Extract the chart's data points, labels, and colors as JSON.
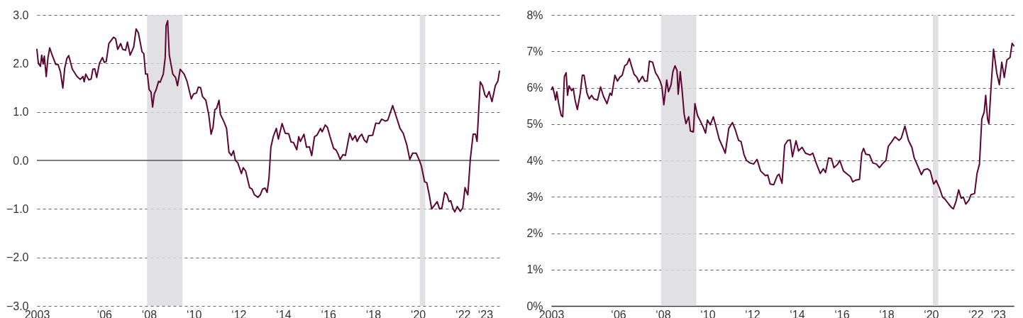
{
  "chart_data": [
    {
      "type": "line",
      "xlim": [
        "2003-01-01",
        "2023-08-22"
      ],
      "xticks": [
        {
          "value": "2003-01-01",
          "label": "2003"
        },
        {
          "value": "2006-01-01",
          "label": "‘06"
        },
        {
          "value": "2008-01-01",
          "label": "‘08"
        },
        {
          "value": "2010-01-01",
          "label": "‘10"
        },
        {
          "value": "2012-01-01",
          "label": "‘12"
        },
        {
          "value": "2014-01-01",
          "label": "‘14"
        },
        {
          "value": "2016-01-01",
          "label": "‘16"
        },
        {
          "value": "2018-01-01",
          "label": "‘18"
        },
        {
          "value": "2020-01-01",
          "label": "‘20"
        },
        {
          "value": "2022-01-01",
          "label": "‘22"
        },
        {
          "value": "2023-01-01",
          "label": "‘23"
        }
      ],
      "ylim": [
        -3,
        3
      ],
      "yticks": [
        {
          "value": -3,
          "label": "−3.0"
        },
        {
          "value": -2,
          "label": "−2.0"
        },
        {
          "value": -1,
          "label": "−1.0"
        },
        {
          "value": 0,
          "label": "0.0"
        },
        {
          "value": 1,
          "label": "1.0"
        },
        {
          "value": 2,
          "label": "2.0"
        },
        {
          "value": 3,
          "label": "3.0"
        }
      ],
      "grid": "y",
      "bands": [
        {
          "axis": "x",
          "from": "2007-12-01",
          "to": "2009-06-30",
          "color": "#dcdcdf"
        },
        {
          "axis": "x",
          "from": "2020-02-01",
          "to": "2020-04-30",
          "color": "#dcdcdf"
        }
      ],
      "ref_lines": [
        {
          "axis": "y",
          "value": 0,
          "color": "#555555"
        }
      ],
      "series": [
        {
          "color": "#5c0632",
          "x": [
            "2003-01-01",
            "2003-01-25",
            "2003-02-28",
            "2003-03-20",
            "2003-04-13",
            "2003-05-02",
            "2003-06-02",
            "2003-07-01",
            "2003-07-29",
            "2003-09-07",
            "2003-11-04",
            "2003-12-12",
            "2004-01-19",
            "2004-02-28",
            "2004-03-29",
            "2004-05-03",
            "2004-06-03",
            "2004-08-01",
            "2004-10-16",
            "2004-12-07",
            "2005-01-21",
            "2005-02-10",
            "2005-03-07",
            "2005-04-26",
            "2005-06-04",
            "2005-07-01",
            "2005-08-01",
            "2005-09-02",
            "2005-10-16",
            "2005-12-04",
            "2006-01-03",
            "2006-02-04",
            "2006-03-19",
            "2006-06-04",
            "2006-07-07",
            "2006-08-10",
            "2006-09-28",
            "2006-10-30",
            "2006-12-16",
            "2007-01-15",
            "2007-03-01",
            "2007-04-28",
            "2007-06-06",
            "2007-07-13",
            "2007-09-10",
            "2007-10-10",
            "2007-11-07",
            "2007-12-07",
            "2008-01-04",
            "2008-02-04",
            "2008-03-01",
            "2008-03-28",
            "2008-04-28",
            "2008-06-06",
            "2008-07-01",
            "2008-08-22",
            "2008-09-22",
            "2008-10-07",
            "2008-11-01",
            "2008-11-28",
            "2009-01-24",
            "2009-03-10",
            "2009-04-10",
            "2009-05-25",
            "2009-07-28",
            "2009-09-13",
            "2009-11-21",
            "2009-12-28",
            "2010-02-14",
            "2010-03-16",
            "2010-04-22",
            "2010-05-22",
            "2010-07-16",
            "2010-09-01",
            "2010-10-10",
            "2010-11-10",
            "2010-12-10",
            "2011-01-07",
            "2011-02-16",
            "2011-03-11",
            "2011-05-13",
            "2011-06-19",
            "2011-07-28",
            "2011-09-07",
            "2011-10-10",
            "2011-11-10",
            "2011-12-19",
            "2012-02-16",
            "2012-03-16",
            "2012-04-25",
            "2012-06-28",
            "2012-08-07",
            "2012-09-16",
            "2012-11-10",
            "2012-12-19",
            "2013-01-26",
            "2013-03-07",
            "2013-04-10",
            "2013-05-10",
            "2013-06-10",
            "2013-07-19",
            "2013-09-07",
            "2013-10-10",
            "2013-12-10",
            "2014-01-30",
            "2014-03-28",
            "2014-05-04",
            "2014-06-13",
            "2014-08-07",
            "2014-09-07",
            "2014-10-04",
            "2014-12-01",
            "2015-01-12",
            "2015-02-28",
            "2015-04-07",
            "2015-05-22",
            "2015-07-01",
            "2015-08-28",
            "2015-09-25",
            "2015-11-13",
            "2015-12-19",
            "2016-01-30",
            "2016-03-28",
            "2016-05-10",
            "2016-06-13",
            "2016-07-13",
            "2016-08-28",
            "2016-10-07",
            "2016-12-16",
            "2017-01-30",
            "2017-03-16",
            "2017-04-16",
            "2017-05-25",
            "2017-07-01",
            "2017-08-10",
            "2017-09-19",
            "2017-10-19",
            "2017-12-25",
            "2018-02-13",
            "2018-04-10",
            "2018-05-19",
            "2018-07-22",
            "2018-08-28",
            "2018-11-16",
            "2019-02-01",
            "2019-03-16",
            "2019-05-07",
            "2019-07-04",
            "2019-08-22",
            "2019-10-07",
            "2019-12-04",
            "2020-02-01",
            "2020-02-28",
            "2020-04-19",
            "2020-05-25",
            "2020-07-04",
            "2020-08-13",
            "2020-11-10",
            "2020-12-19",
            "2021-01-26",
            "2021-03-13",
            "2021-04-19",
            "2021-05-22",
            "2021-06-19",
            "2021-07-28",
            "2021-08-25",
            "2021-10-04",
            "2021-11-22",
            "2022-01-01",
            "2022-02-07",
            "2022-03-25",
            "2022-05-04",
            "2022-06-19",
            "2022-07-28",
            "2022-08-22",
            "2022-10-13",
            "2022-11-19",
            "2022-12-28",
            "2023-01-26",
            "2023-03-07",
            "2023-04-22",
            "2023-06-16",
            "2023-07-28",
            "2023-08-22"
          ],
          "values": [
            2.29,
            2.0,
            1.94,
            2.17,
            1.99,
            2.15,
            1.73,
            2.12,
            2.32,
            2.17,
            1.98,
            1.98,
            1.83,
            1.49,
            1.9,
            2.1,
            2.16,
            1.88,
            1.73,
            1.67,
            1.73,
            1.62,
            1.78,
            1.66,
            1.68,
            1.88,
            1.89,
            1.71,
            2.0,
            2.12,
            2.02,
            2.04,
            2.41,
            2.54,
            2.51,
            2.29,
            2.41,
            2.29,
            2.27,
            2.44,
            2.17,
            2.34,
            2.71,
            2.63,
            2.24,
            2.2,
            1.78,
            1.78,
            1.46,
            1.41,
            1.1,
            1.37,
            1.46,
            1.63,
            1.61,
            1.78,
            2.12,
            2.78,
            2.88,
            2.17,
            1.78,
            1.71,
            1.54,
            1.88,
            1.78,
            1.63,
            1.27,
            1.37,
            1.39,
            1.51,
            1.5,
            1.32,
            1.24,
            0.95,
            0.54,
            0.68,
            1.05,
            1.07,
            1.24,
            0.95,
            0.78,
            0.66,
            0.17,
            0.1,
            0.2,
            0.0,
            -0.05,
            -0.27,
            -0.15,
            -0.22,
            -0.56,
            -0.59,
            -0.71,
            -0.76,
            -0.71,
            -0.59,
            -0.57,
            -0.66,
            -0.37,
            0.27,
            0.49,
            0.66,
            0.44,
            0.76,
            0.56,
            0.55,
            0.38,
            0.37,
            0.22,
            0.49,
            0.39,
            0.54,
            0.27,
            0.28,
            0.1,
            0.49,
            0.52,
            0.66,
            0.59,
            0.73,
            0.68,
            0.49,
            0.25,
            0.21,
            0.12,
            0.02,
            0.12,
            0.1,
            0.56,
            0.42,
            0.51,
            0.39,
            0.49,
            0.54,
            0.42,
            0.37,
            0.51,
            0.52,
            0.77,
            0.76,
            0.85,
            0.81,
            0.83,
            1.13,
            0.83,
            0.66,
            0.56,
            0.32,
            0.02,
            0.15,
            0.15,
            -0.02,
            -0.12,
            -0.44,
            -0.46,
            -0.71,
            -1.0,
            -0.85,
            -1.0,
            -0.98,
            -0.66,
            -0.71,
            -0.85,
            -0.83,
            -1.0,
            -1.06,
            -0.95,
            -1.05,
            -0.98,
            -0.56,
            -0.71,
            0.02,
            0.54,
            0.54,
            0.39,
            1.62,
            1.54,
            1.35,
            1.3,
            1.42,
            1.21,
            1.54,
            1.64,
            1.84
          ]
        }
      ]
    },
    {
      "type": "line",
      "xlim": [
        "2003-01-01",
        "2023-09-15"
      ],
      "xticks": [
        {
          "value": "2003-01-01",
          "label": "2003"
        },
        {
          "value": "2006-01-01",
          "label": "‘06"
        },
        {
          "value": "2008-01-01",
          "label": "‘08"
        },
        {
          "value": "2010-01-01",
          "label": "‘10"
        },
        {
          "value": "2012-01-01",
          "label": "‘12"
        },
        {
          "value": "2014-01-01",
          "label": "‘14"
        },
        {
          "value": "2016-01-01",
          "label": "‘16"
        },
        {
          "value": "2018-01-01",
          "label": "‘18"
        },
        {
          "value": "2020-01-01",
          "label": "‘20"
        },
        {
          "value": "2022-01-01",
          "label": "‘22"
        },
        {
          "value": "2023-01-01",
          "label": "‘23"
        }
      ],
      "ylim": [
        0,
        8
      ],
      "yticks": [
        {
          "value": 0,
          "label": "0%"
        },
        {
          "value": 1,
          "label": "1%"
        },
        {
          "value": 2,
          "label": "2%"
        },
        {
          "value": 3,
          "label": "3%"
        },
        {
          "value": 4,
          "label": "4%"
        },
        {
          "value": 5,
          "label": "5%"
        },
        {
          "value": 6,
          "label": "6%"
        },
        {
          "value": 7,
          "label": "7%"
        },
        {
          "value": 8,
          "label": "8%"
        }
      ],
      "grid": "y",
      "bands": [
        {
          "axis": "x",
          "from": "2007-12-01",
          "to": "2009-06-30",
          "color": "#dcdcdf"
        },
        {
          "axis": "x",
          "from": "2020-02-01",
          "to": "2020-04-30",
          "color": "#dcdcdf"
        }
      ],
      "series": [
        {
          "color": "#5c0632",
          "x": [
            "2003-01-04",
            "2003-01-24",
            "2003-02-13",
            "2003-03-14",
            "2003-04-02",
            "2003-04-30",
            "2003-05-19",
            "2003-06-13",
            "2003-07-08",
            "2003-08-04",
            "2003-09-02",
            "2003-09-25",
            "2003-10-19",
            "2003-11-29",
            "2003-12-27",
            "2004-01-26",
            "2004-03-03",
            "2004-04-20",
            "2004-05-23",
            "2004-06-21",
            "2004-08-07",
            "2004-09-13",
            "2004-10-22",
            "2004-11-29",
            "2005-01-26",
            "2005-03-18",
            "2005-05-04",
            "2005-07-01",
            "2005-08-19",
            "2005-09-16",
            "2005-11-07",
            "2005-12-19",
            "2006-01-22",
            "2006-03-07",
            "2006-04-16",
            "2006-05-25",
            "2006-07-01",
            "2006-08-10",
            "2006-09-16",
            "2006-11-04",
            "2006-12-04",
            "2007-02-01",
            "2007-03-10",
            "2007-04-19",
            "2007-05-25",
            "2007-07-16",
            "2007-09-02",
            "2007-10-10",
            "2007-11-16",
            "2007-12-16",
            "2008-01-16",
            "2008-03-03",
            "2008-04-01",
            "2008-05-13",
            "2008-06-13",
            "2008-07-16",
            "2008-08-19",
            "2008-09-07",
            "2008-10-10",
            "2008-11-07",
            "2008-12-13",
            "2009-01-12",
            "2009-02-25",
            "2009-03-25",
            "2009-05-13",
            "2009-06-07",
            "2009-07-19",
            "2009-09-07",
            "2009-10-22",
            "2009-11-28",
            "2009-12-28",
            "2010-02-13",
            "2010-04-04",
            "2010-05-16",
            "2010-07-08",
            "2010-09-07",
            "2010-10-16",
            "2010-12-13",
            "2011-02-10",
            "2011-03-28",
            "2011-05-22",
            "2011-07-01",
            "2011-08-19",
            "2011-09-28",
            "2011-11-25",
            "2012-01-22",
            "2012-03-18",
            "2012-05-16",
            "2012-08-04",
            "2012-09-10",
            "2012-10-19",
            "2012-12-16",
            "2013-02-13",
            "2013-03-14",
            "2013-05-01",
            "2013-06-13",
            "2013-08-04",
            "2013-09-13",
            "2013-10-19",
            "2013-12-16",
            "2014-01-26",
            "2014-03-25",
            "2014-05-19",
            "2014-08-04",
            "2014-09-16",
            "2014-11-10",
            "2015-01-16",
            "2015-03-07",
            "2015-04-13",
            "2015-06-01",
            "2015-07-19",
            "2015-08-28",
            "2015-10-25",
            "2015-12-01",
            "2016-01-30",
            "2016-03-28",
            "2016-05-25",
            "2016-07-01",
            "2016-08-19",
            "2016-10-19",
            "2016-11-25",
            "2016-12-25",
            "2017-01-30",
            "2017-04-01",
            "2017-05-25",
            "2017-07-22",
            "2017-09-10",
            "2017-10-31",
            "2017-12-25",
            "2018-02-02",
            "2018-04-01",
            "2018-05-22",
            "2018-07-28",
            "2018-09-01",
            "2018-10-31",
            "2018-12-28",
            "2019-02-22",
            "2019-04-01",
            "2019-05-31",
            "2019-07-28",
            "2019-09-07",
            "2019-11-04",
            "2019-12-19",
            "2020-02-13",
            "2020-03-25",
            "2020-05-16",
            "2020-07-08",
            "2020-08-19",
            "2020-10-16",
            "2020-12-04",
            "2021-01-01",
            "2021-02-10",
            "2021-03-28",
            "2021-05-07",
            "2021-06-13",
            "2021-07-22",
            "2021-09-10",
            "2021-10-16",
            "2021-12-13",
            "2022-01-22",
            "2022-03-03",
            "2022-04-10",
            "2022-05-19",
            "2022-06-13",
            "2022-07-13",
            "2022-08-04",
            "2022-09-10",
            "2022-10-19",
            "2022-12-10",
            "2023-01-22",
            "2023-03-03",
            "2023-04-13",
            "2023-05-25",
            "2023-07-16",
            "2023-08-19",
            "2023-09-15"
          ],
          "values": [
            5.95,
            6.02,
            5.89,
            5.66,
            5.89,
            5.59,
            5.43,
            5.24,
            5.2,
            6.31,
            6.41,
            5.79,
            6.05,
            5.92,
            5.98,
            5.66,
            5.4,
            5.85,
            6.34,
            6.34,
            5.85,
            5.69,
            5.79,
            5.69,
            5.66,
            6.02,
            5.76,
            5.56,
            5.85,
            5.79,
            6.34,
            6.18,
            6.28,
            6.34,
            6.6,
            6.65,
            6.8,
            6.57,
            6.37,
            6.28,
            6.15,
            6.31,
            6.18,
            6.18,
            6.73,
            6.7,
            6.41,
            6.31,
            6.18,
            6.02,
            5.53,
            6.21,
            5.89,
            6.08,
            6.44,
            6.6,
            6.47,
            5.82,
            6.44,
            5.98,
            5.27,
            5.01,
            5.2,
            4.81,
            4.78,
            5.56,
            5.24,
            5.07,
            4.91,
            4.75,
            5.11,
            4.98,
            5.2,
            4.94,
            4.59,
            4.36,
            4.2,
            4.88,
            5.04,
            4.85,
            4.55,
            4.52,
            4.16,
            4.0,
            3.93,
            3.9,
            4.03,
            3.71,
            3.58,
            3.6,
            3.35,
            3.33,
            3.58,
            3.62,
            3.37,
            4.42,
            4.55,
            4.56,
            4.1,
            4.54,
            4.26,
            4.36,
            4.2,
            4.15,
            4.2,
            3.93,
            3.64,
            3.77,
            3.67,
            4.07,
            4.05,
            3.8,
            3.89,
            4.0,
            3.71,
            3.63,
            3.55,
            3.41,
            3.46,
            3.48,
            4.2,
            4.33,
            4.17,
            4.15,
            3.93,
            3.9,
            3.8,
            3.91,
            4.0,
            4.39,
            4.52,
            4.65,
            4.55,
            4.61,
            4.94,
            4.55,
            4.36,
            4.07,
            3.84,
            3.61,
            3.74,
            3.77,
            3.71,
            3.35,
            3.45,
            3.25,
            2.99,
            2.93,
            2.8,
            2.7,
            2.67,
            2.86,
            3.19,
            2.96,
            2.99,
            2.8,
            2.9,
            3.06,
            3.09,
            3.64,
            3.9,
            5.14,
            5.33,
            5.79,
            5.14,
            5.01,
            6.05,
            7.06,
            6.41,
            6.08,
            6.7,
            6.28,
            6.76,
            6.83,
            7.22,
            7.15
          ]
        }
      ]
    }
  ]
}
